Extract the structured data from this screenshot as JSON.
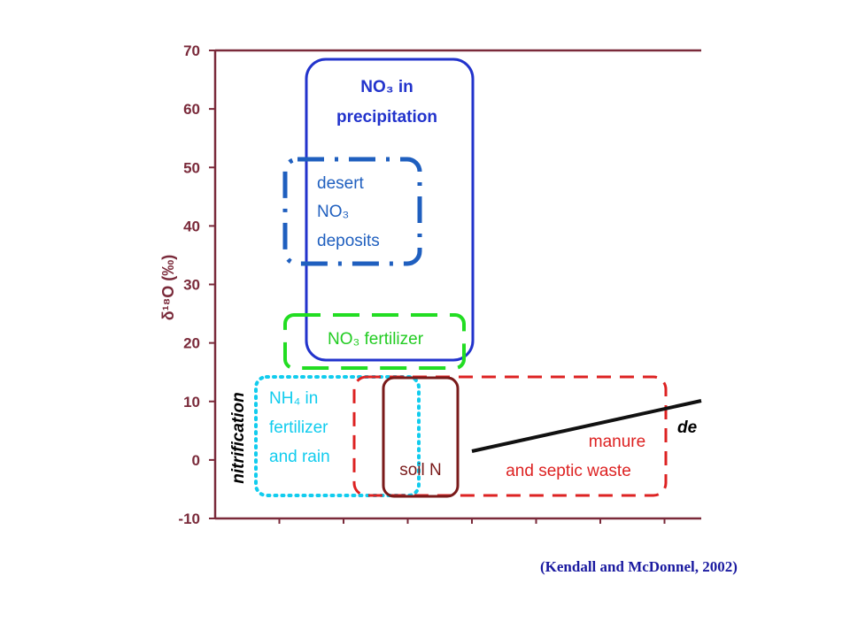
{
  "chart_data": {
    "type": "region-diagram",
    "title": "",
    "xlabel": "",
    "ylabel": "δ¹⁸O (‰)",
    "ylim": [
      -10,
      70
    ],
    "y_ticks": [
      -10,
      0,
      10,
      20,
      30,
      40,
      50,
      60,
      70
    ],
    "grid": false,
    "regions": [
      {
        "id": "precipitation",
        "lines": [
          "NO₃ in",
          "precipitation"
        ],
        "y_range": [
          17,
          67
        ],
        "color": "#2233cc",
        "style": "solid",
        "bold": true
      },
      {
        "id": "desert",
        "lines": [
          "desert",
          "NO₃",
          "deposits"
        ],
        "y_range": [
          34,
          52
        ],
        "color": "#1f5fbf",
        "style": "dashdot",
        "bold": false
      },
      {
        "id": "no3-fertilizer",
        "lines": [
          "NO₃ fertilizer"
        ],
        "y_range": [
          16,
          25
        ],
        "color": "#22dd22",
        "style": "dashed",
        "bold": false
      },
      {
        "id": "nh4-fertilizer",
        "lines": [
          "NH₄ in",
          "fertilizer",
          "and rain"
        ],
        "y_range": [
          -6,
          14
        ],
        "color": "#11ccee",
        "style": "dotted",
        "bold": false
      },
      {
        "id": "manure",
        "lines": [
          "manure",
          "and septic waste"
        ],
        "y_range": [
          -6,
          14
        ],
        "color": "#dd2222",
        "style": "dashed",
        "bold": false
      },
      {
        "id": "soil-n",
        "lines": [
          "soil N"
        ],
        "y_range": [
          -6,
          14
        ],
        "color": "#7a1a1a",
        "style": "solid",
        "bold": false
      }
    ],
    "annotations": {
      "nitrification": "nitrification",
      "denitrification_partial": "de"
    }
  },
  "citation": "(Kendall and McDonnel, 2002)"
}
